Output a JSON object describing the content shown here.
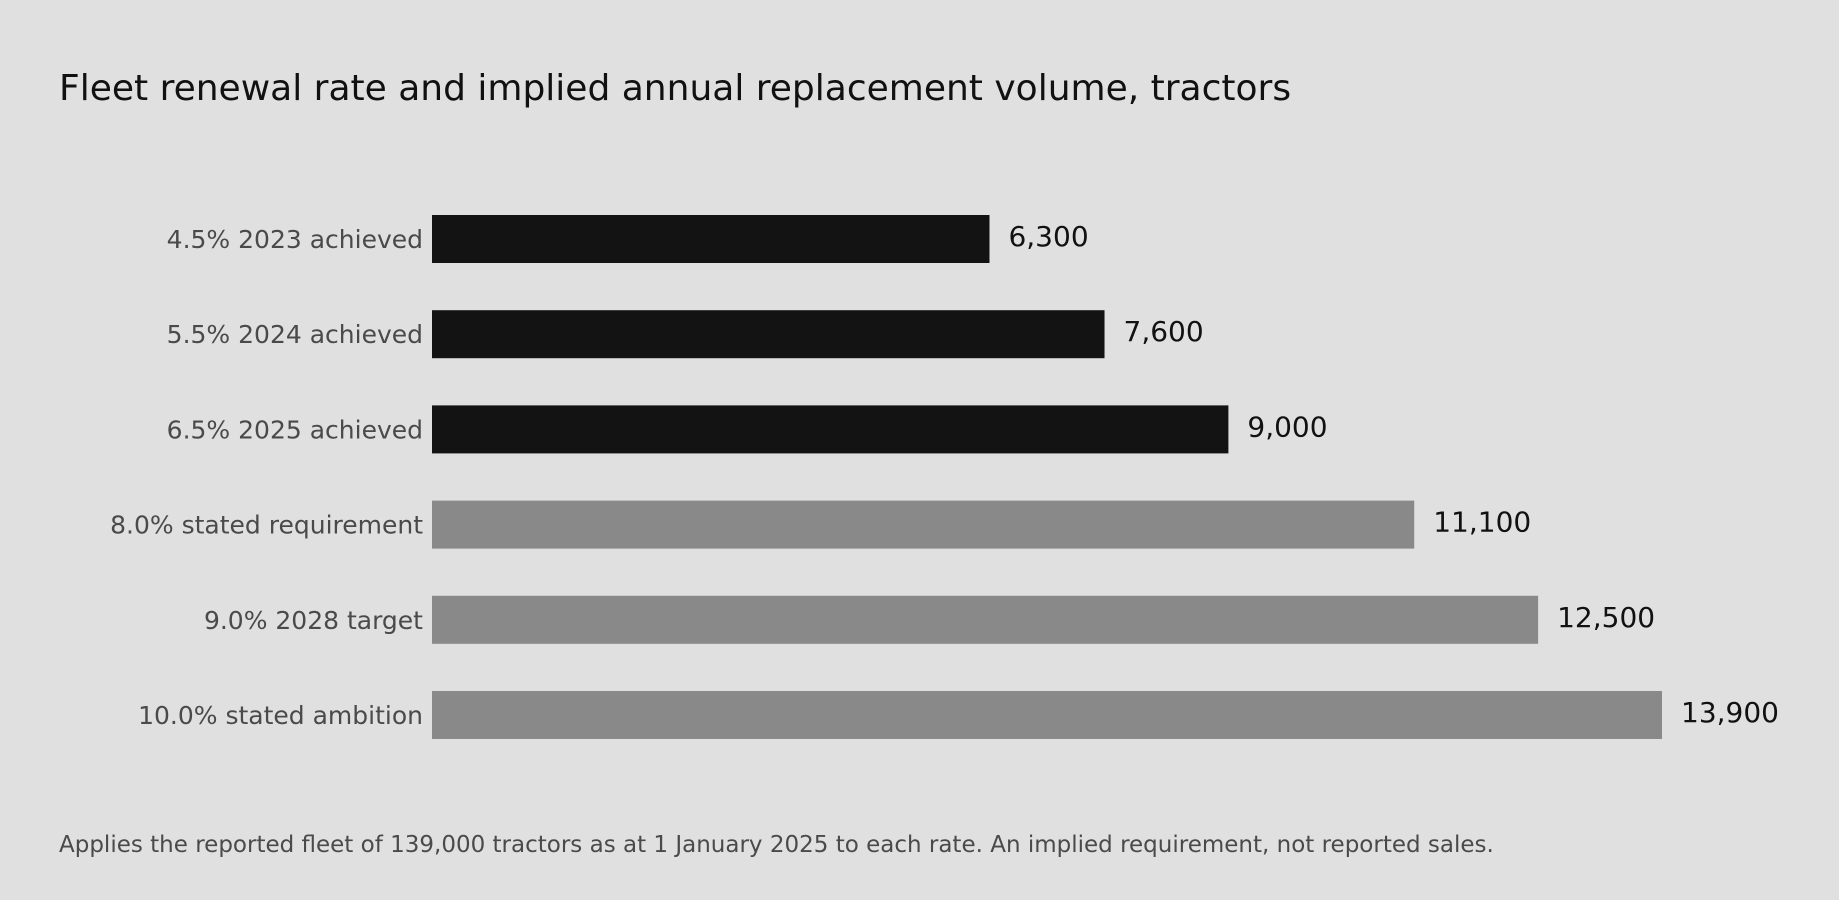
{
  "colors": {
    "background": "#e0e0e0",
    "achieved": "#131313",
    "target": "#898989",
    "label": "#4a4a4a",
    "value": "#111111"
  },
  "chart_data": {
    "type": "bar",
    "orientation": "horizontal",
    "title": "Fleet renewal rate and implied annual replacement volume, tractors",
    "footnote": "Applies the reported fleet of 139,000 tractors as at 1 January 2025 to each rate. An implied requirement, not reported sales.",
    "xlim": [
      0,
      13900
    ],
    "grid": false,
    "legend": "none",
    "categories": [
      {
        "rate": "4.5%",
        "label": "2023 achieved",
        "value": 6300,
        "value_label": "6,300",
        "group": "achieved"
      },
      {
        "rate": "5.5%",
        "label": "2024 achieved",
        "value": 7600,
        "value_label": "7,600",
        "group": "achieved"
      },
      {
        "rate": "6.5%",
        "label": "2025 achieved",
        "value": 9000,
        "value_label": "9,000",
        "group": "achieved"
      },
      {
        "rate": "8.0%",
        "label": "stated requirement",
        "value": 11100,
        "value_label": "11,100",
        "group": "target"
      },
      {
        "rate": "9.0%",
        "label": "2028 target",
        "value": 12500,
        "value_label": "12,500",
        "group": "target"
      },
      {
        "rate": "10.0%",
        "label": "stated ambition",
        "value": 13900,
        "value_label": "13,900",
        "group": "target"
      }
    ]
  }
}
